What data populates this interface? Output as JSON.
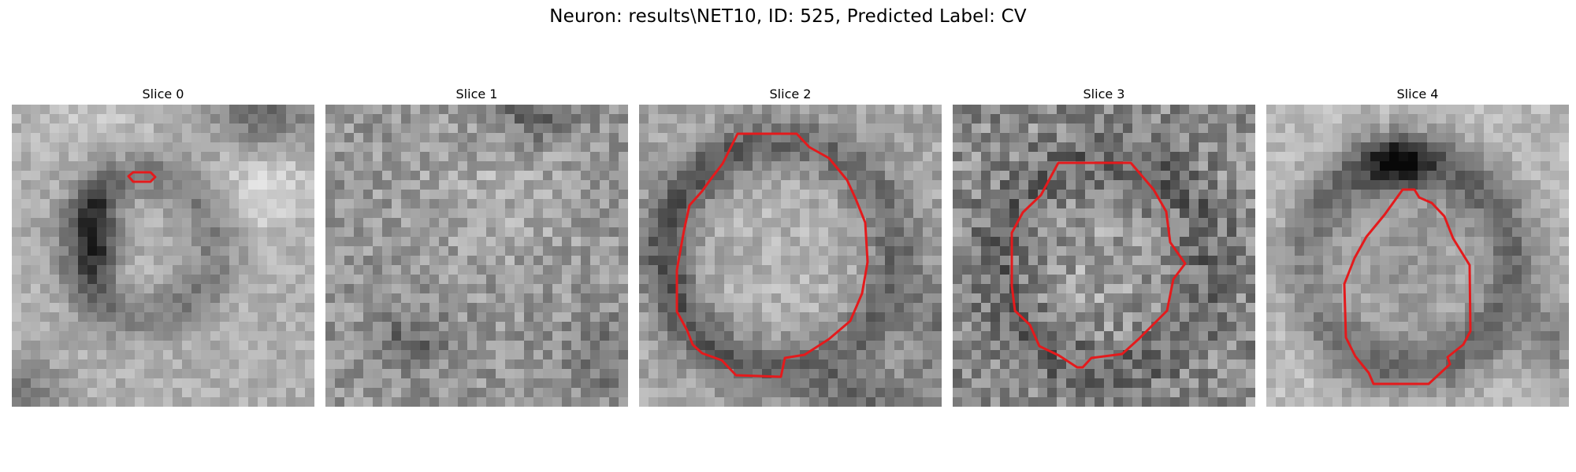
{
  "figure": {
    "title": "Neuron: results\\NET10, ID: 525, Predicted Label: CV"
  },
  "slices": [
    {
      "title": "Slice 0"
    },
    {
      "title": "Slice 1"
    },
    {
      "title": "Slice 2"
    },
    {
      "title": "Slice 3"
    },
    {
      "title": "Slice 4"
    }
  ],
  "colors": {
    "contour": "#e41a1c",
    "background": "#ffffff"
  }
}
